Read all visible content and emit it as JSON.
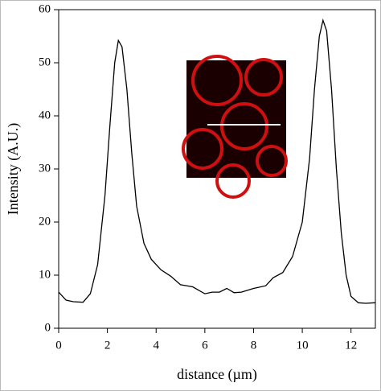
{
  "chart_data": {
    "type": "line",
    "x_label": "distance (µm)",
    "y_label": "Intensity (A.U.)",
    "x": [
      0,
      0.3,
      0.6,
      1.0,
      1.3,
      1.6,
      1.9,
      2.1,
      2.3,
      2.45,
      2.6,
      2.8,
      3.0,
      3.2,
      3.5,
      3.8,
      4.2,
      4.6,
      5.0,
      5.5,
      6.0,
      6.3,
      6.6,
      6.9,
      7.2,
      7.5,
      8.0,
      8.5,
      8.8,
      9.2,
      9.6,
      10.0,
      10.3,
      10.5,
      10.7,
      10.85,
      11.0,
      11.2,
      11.4,
      11.6,
      11.8,
      12.0,
      12.3,
      12.6,
      13.0
    ],
    "values": [
      6.8,
      5.3,
      5.0,
      4.9,
      6.5,
      12,
      25,
      38,
      50,
      54.2,
      53,
      45,
      33,
      23,
      16,
      13,
      11,
      9.8,
      8.2,
      7.8,
      6.5,
      6.8,
      6.8,
      7.5,
      6.7,
      6.8,
      7.5,
      8.0,
      9.5,
      10.5,
      13.5,
      20,
      32,
      45,
      55,
      58,
      56,
      45,
      30,
      18,
      10,
      6,
      4.8,
      4.7,
      4.8
    ],
    "color": "#000000",
    "xlim": [
      0,
      13
    ],
    "xticks": [
      0,
      2,
      4,
      6,
      8,
      10,
      12
    ],
    "ylim": [
      0,
      60
    ],
    "yticks": [
      0,
      10,
      20,
      30,
      40,
      50,
      60
    ]
  }
}
